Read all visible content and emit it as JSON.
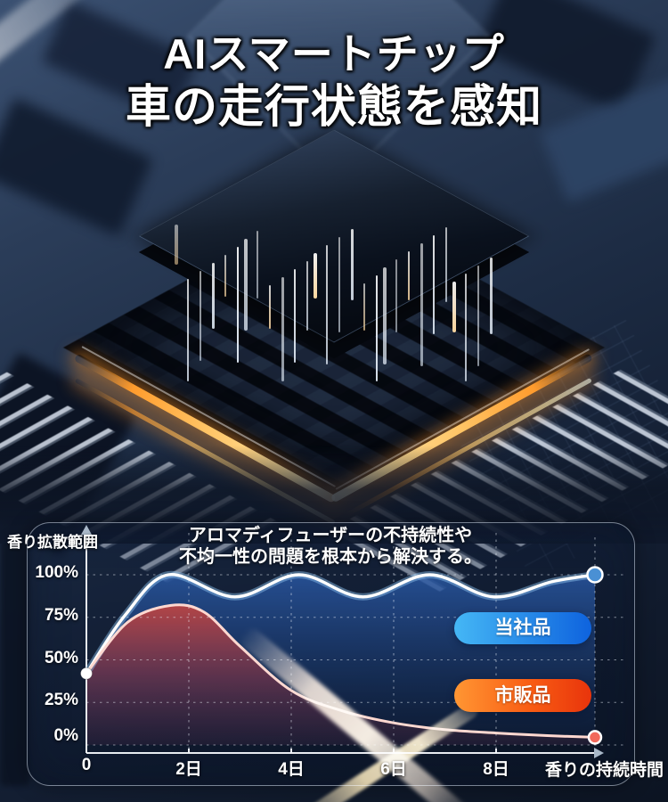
{
  "title": {
    "line1": "AIスマートチップ",
    "line2": "車の走行状態を感知"
  },
  "panel": {
    "subtitle_line1": "アロマディフューザーの不持続性や",
    "subtitle_line2": "不均一性の問題を根本から解決する。",
    "y_axis_title": "香り拡散範囲",
    "x_axis_title": "香りの持続時間",
    "legend": {
      "ours": "当社品",
      "market": "市販品"
    }
  },
  "colors": {
    "legend_ours_start": "#45b7f5",
    "legend_ours_end": "#0e63de",
    "legend_market_start": "#ff9633",
    "legend_market_mid": "#f95d14",
    "legend_market_end": "#e8340b",
    "series_ours_fill": "#2a5aa8",
    "series_market_fill": "#e84a33",
    "ours_line": "#ffffff",
    "market_line": "#ffd8d0",
    "ours_dot": "#4a90d4",
    "market_dot": "#f2695c",
    "glow_orange": "#ffb347"
  },
  "chart_data": {
    "type": "line",
    "title": "アロマディフューザーの不持続性や不均一性の問題を根本から解決する。",
    "xlabel": "香りの持続時間",
    "ylabel": "香り拡散範囲",
    "xlim": [
      0,
      10
    ],
    "ylim": [
      0,
      100
    ],
    "grid": true,
    "legend_position": "inside-right",
    "x_ticks": {
      "values": [
        0,
        2,
        4,
        6,
        8
      ],
      "labels": [
        "0",
        "2日",
        "4日",
        "6日",
        "8日"
      ]
    },
    "y_ticks": {
      "values": [
        100,
        75,
        50,
        25,
        0
      ],
      "labels": [
        "100%",
        "75%",
        "50%",
        "25%",
        "0%"
      ]
    },
    "series": [
      {
        "name": "当社品",
        "points": [
          [
            0,
            42
          ],
          [
            0.75,
            76
          ],
          [
            1.6,
            100
          ],
          [
            2.9,
            87
          ],
          [
            4.15,
            100
          ],
          [
            5.4,
            87
          ],
          [
            6.7,
            100
          ],
          [
            7.95,
            87
          ],
          [
            9.1,
            96
          ],
          [
            9.93,
            100
          ]
        ]
      },
      {
        "name": "市販品",
        "points": [
          [
            0,
            42
          ],
          [
            0.8,
            72
          ],
          [
            1.65,
            82
          ],
          [
            2.3,
            78
          ],
          [
            3,
            58
          ],
          [
            4,
            32
          ],
          [
            5,
            20
          ],
          [
            6,
            13
          ],
          [
            7,
            9
          ],
          [
            8,
            7
          ],
          [
            9,
            5.5
          ],
          [
            9.93,
            4.5
          ]
        ]
      }
    ]
  }
}
